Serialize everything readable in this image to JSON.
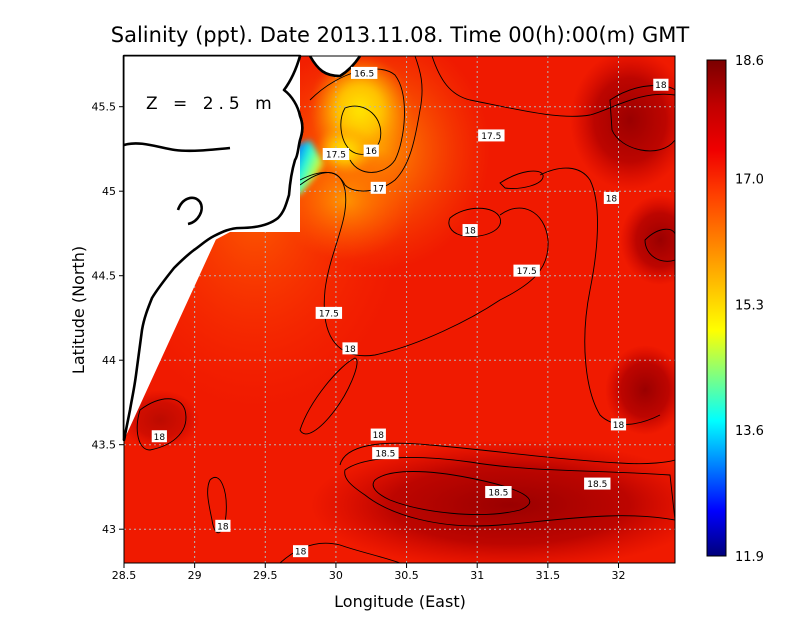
{
  "chart_data": {
    "type": "heatmap",
    "title": "Salinity (ppt). Date 2013.11.08. Time 00(h):00(m) GMT",
    "xlabel": "Longitude (East)",
    "ylabel": "Latitude (North)",
    "xlim": [
      28.5,
      32.4
    ],
    "ylim": [
      42.8,
      45.8
    ],
    "x_ticks": [
      "28.5",
      "29",
      "29.5",
      "30",
      "30.5",
      "31",
      "31.5",
      "32"
    ],
    "y_ticks": [
      "43",
      "43.5",
      "44",
      "44.5",
      "45",
      "45.5"
    ],
    "grid": true,
    "annotation": "Z = 2.5 m",
    "colorbar": {
      "min": 11.9,
      "max": 18.6,
      "ticks": [
        "18.6",
        "17.0",
        "15.3",
        "13.6",
        "11.9"
      ],
      "colors": [
        "#7a0000",
        "#c00000",
        "#f00000",
        "#ff4000",
        "#ff8000",
        "#ffc000",
        "#ffff00",
        "#80ff80",
        "#00ffff",
        "#0080ff",
        "#0000ff",
        "#00007a"
      ]
    },
    "contour_labels": [
      {
        "text": "16.5",
        "lon": 30.2,
        "lat": 45.7
      },
      {
        "text": "18",
        "lon": 32.3,
        "lat": 45.63
      },
      {
        "text": "17.5",
        "lon": 31.1,
        "lat": 45.33
      },
      {
        "text": "16",
        "lon": 30.25,
        "lat": 45.24
      },
      {
        "text": "17.5",
        "lon": 30.0,
        "lat": 45.22
      },
      {
        "text": "17",
        "lon": 30.3,
        "lat": 45.02
      },
      {
        "text": "18",
        "lon": 31.95,
        "lat": 44.96
      },
      {
        "text": "18",
        "lon": 30.95,
        "lat": 44.77
      },
      {
        "text": "17.5",
        "lon": 31.35,
        "lat": 44.53
      },
      {
        "text": "17.5",
        "lon": 29.95,
        "lat": 44.28
      },
      {
        "text": "18",
        "lon": 30.1,
        "lat": 44.07
      },
      {
        "text": "18",
        "lon": 32.0,
        "lat": 43.62
      },
      {
        "text": "18",
        "lon": 28.75,
        "lat": 43.55
      },
      {
        "text": "18",
        "lon": 30.3,
        "lat": 43.56
      },
      {
        "text": "18.5",
        "lon": 30.35,
        "lat": 43.45
      },
      {
        "text": "18.5",
        "lon": 31.15,
        "lat": 43.22
      },
      {
        "text": "18.5",
        "lon": 31.85,
        "lat": 43.27
      },
      {
        "text": "18",
        "lon": 29.2,
        "lat": 43.02
      },
      {
        "text": "18",
        "lon": 29.75,
        "lat": 42.87
      }
    ]
  }
}
